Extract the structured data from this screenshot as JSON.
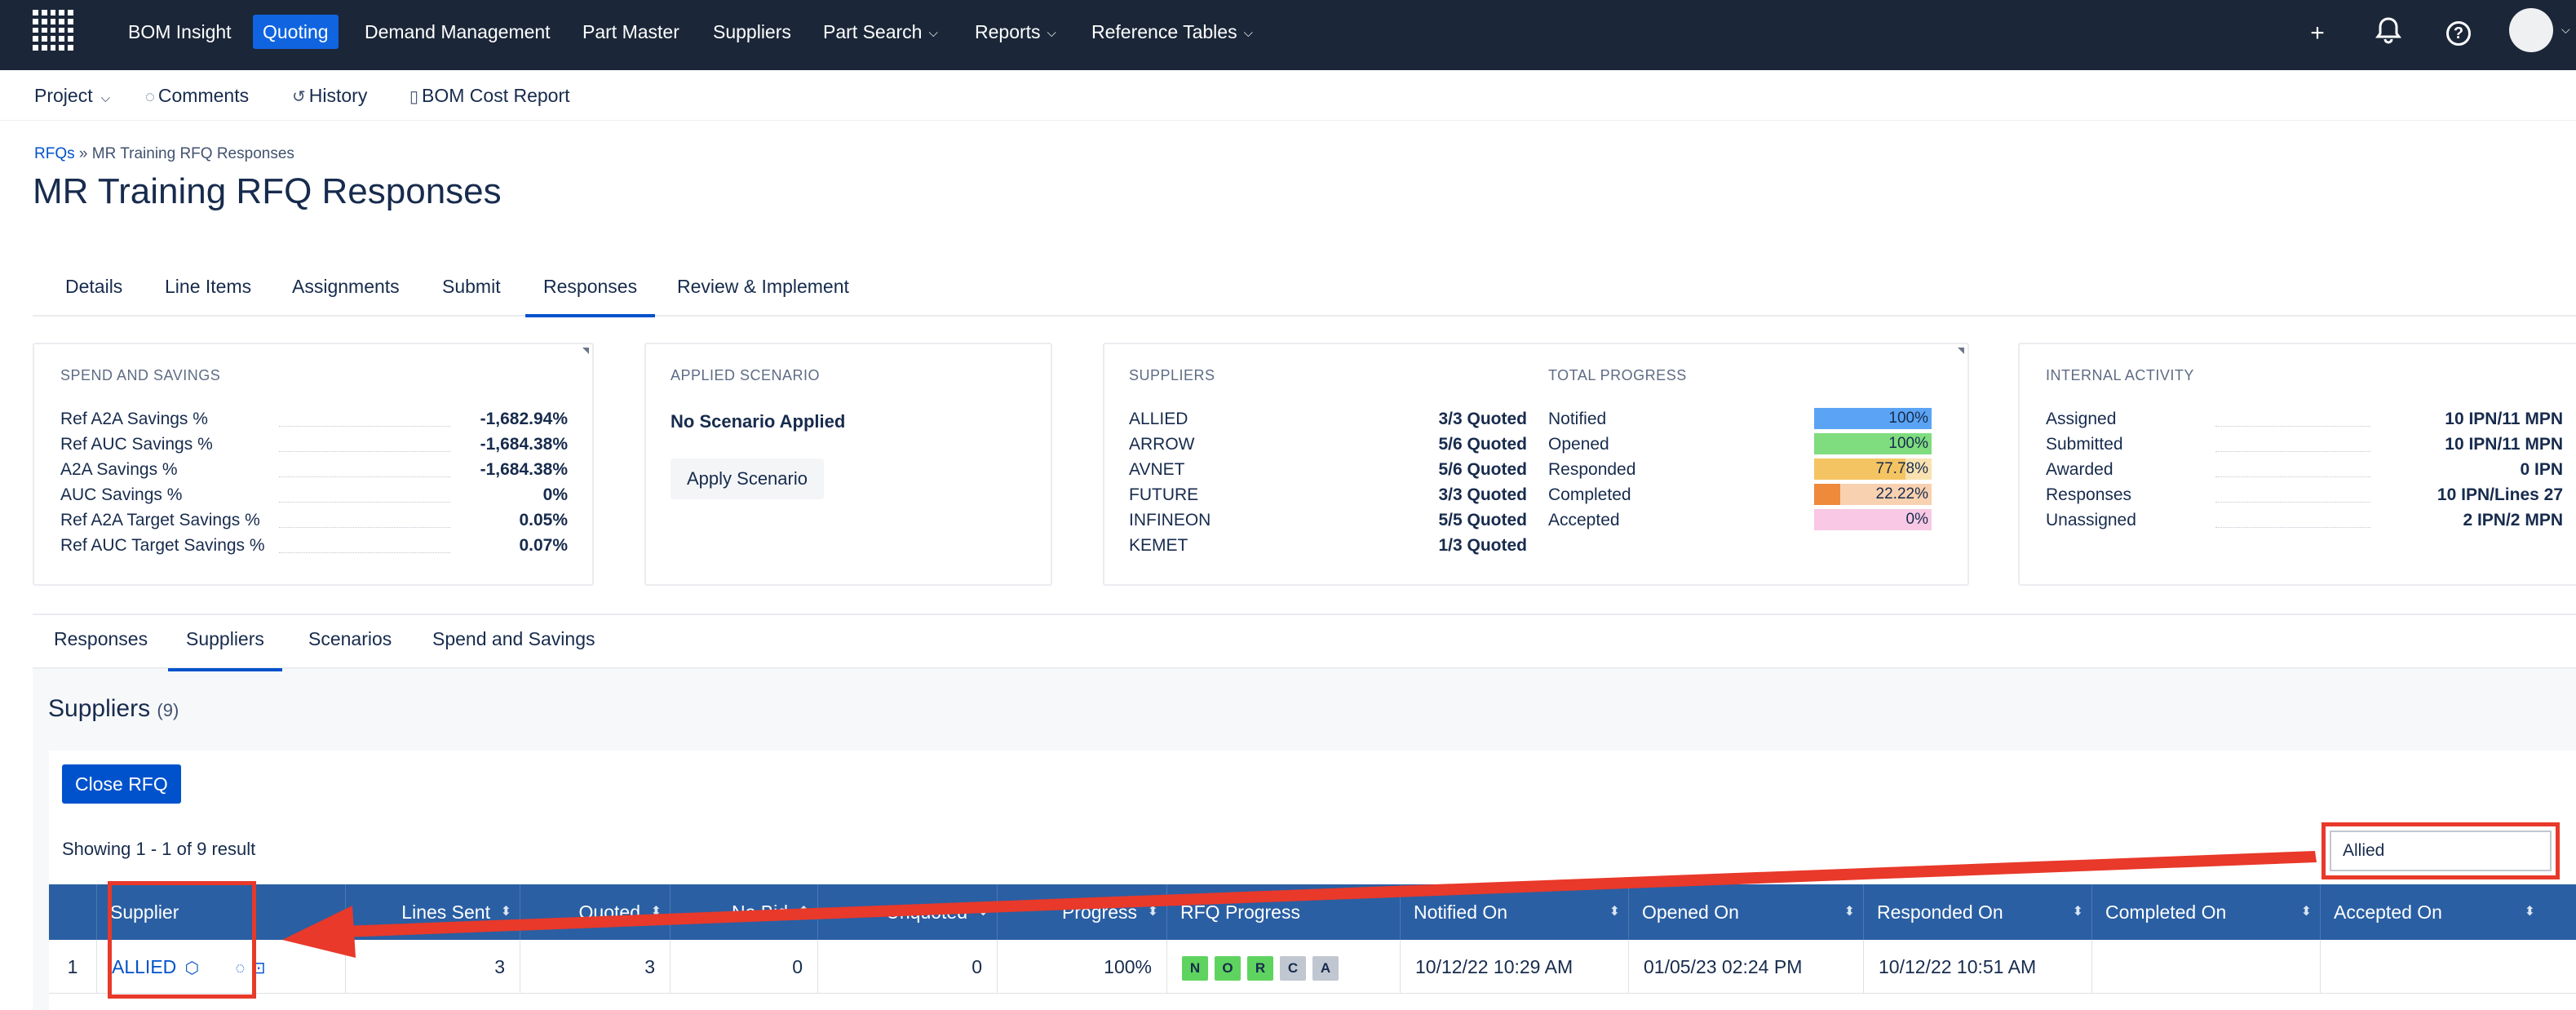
{
  "topnav": {
    "items": [
      {
        "label": "BOM Insight"
      },
      {
        "label": "Quoting"
      },
      {
        "label": "Demand Management"
      },
      {
        "label": "Part Master"
      },
      {
        "label": "Suppliers"
      },
      {
        "label": "Part Search"
      },
      {
        "label": "Reports"
      },
      {
        "label": "Reference Tables"
      }
    ],
    "icons": [
      "plus-icon",
      "bell-icon",
      "help-icon",
      "avatar"
    ]
  },
  "subnav": {
    "project": "Project",
    "comments": "Comments",
    "history": "History",
    "bom_cost_report": "BOM Cost Report"
  },
  "breadcrumb": {
    "root": "RFQs",
    "sep": "»",
    "current": "MR Training RFQ Responses"
  },
  "page_title": "MR Training RFQ Responses",
  "tabs": [
    "Details",
    "Line Items",
    "Assignments",
    "Submit",
    "Responses",
    "Review & Implement"
  ],
  "active_tab": "Responses",
  "spend": {
    "header": "SPEND AND SAVINGS",
    "rows": [
      {
        "k": "Ref A2A Savings %",
        "v": "-1,682.94%"
      },
      {
        "k": "Ref AUC Savings %",
        "v": "-1,684.38%"
      },
      {
        "k": "A2A Savings %",
        "v": "-1,684.38%"
      },
      {
        "k": "AUC Savings %",
        "v": "0%"
      },
      {
        "k": "Ref A2A Target Savings %",
        "v": "0.05%"
      },
      {
        "k": "Ref AUC Target Savings %",
        "v": "0.07%"
      }
    ]
  },
  "scenario": {
    "header": "APPLIED SCENARIO",
    "status": "No Scenario Applied",
    "button": "Apply Scenario"
  },
  "suppliers_card": {
    "header": "SUPPLIERS",
    "rows": [
      {
        "k": "ALLIED",
        "v": "3/3 Quoted"
      },
      {
        "k": "ARROW",
        "v": "5/6 Quoted"
      },
      {
        "k": "AVNET",
        "v": "5/6 Quoted"
      },
      {
        "k": "FUTURE",
        "v": "3/3 Quoted"
      },
      {
        "k": "INFINEON",
        "v": "5/5 Quoted"
      },
      {
        "k": "KEMET",
        "v": "1/3 Quoted"
      }
    ]
  },
  "progress_card": {
    "header": "TOTAL PROGRESS",
    "rows": [
      {
        "k": "Notified",
        "v": "100%",
        "pct": 100,
        "color": "#5ba4f5",
        "bg": "#5ba4f5"
      },
      {
        "k": "Opened",
        "v": "100%",
        "pct": 100,
        "color": "#7fdc7f",
        "bg": "#7fdc7f"
      },
      {
        "k": "Responded",
        "v": "77.78%",
        "pct": 77.78,
        "color": "#f5c462",
        "bg": "#f9e2b0"
      },
      {
        "k": "Completed",
        "v": "22.22%",
        "pct": 22.22,
        "color": "#ee8a3a",
        "bg": "#f8d1b0"
      },
      {
        "k": "Accepted",
        "v": "0%",
        "pct": 0,
        "color": "#f5a0d0",
        "bg": "#f8c8e4"
      }
    ]
  },
  "internal": {
    "header": "INTERNAL ACTIVITY",
    "rows": [
      {
        "k": "Assigned",
        "v": "10 IPN/11 MPN"
      },
      {
        "k": "Submitted",
        "v": "10 IPN/11 MPN"
      },
      {
        "k": "Awarded",
        "v": "0 IPN"
      },
      {
        "k": "Responses",
        "v": "10 IPN/Lines 27"
      },
      {
        "k": "Unassigned",
        "v": "2 IPN/2 MPN"
      }
    ]
  },
  "subtabs": [
    "Responses",
    "Suppliers",
    "Scenarios",
    "Spend and Savings"
  ],
  "active_subtab": "Suppliers",
  "section": {
    "title": "Suppliers",
    "count": "(9)"
  },
  "close_button": "Close RFQ",
  "showing": "Showing 1 - 1 of 9 result",
  "search_value": "Allied",
  "table": {
    "headers": [
      "Supplier",
      "Lines Sent",
      "Quoted",
      "No Bid",
      "Unquoted",
      "Progress",
      "RFQ Progress",
      "Notified On",
      "Opened On",
      "Responded On",
      "Completed On",
      "Accepted On"
    ],
    "row": {
      "index": "1",
      "supplier": "ALLIED",
      "lines_sent": "3",
      "quoted": "3",
      "no_bid": "0",
      "unquoted": "0",
      "progress": "100%",
      "badges": [
        {
          "t": "N",
          "color": "#5fd35f"
        },
        {
          "t": "O",
          "color": "#5fd35f"
        },
        {
          "t": "R",
          "color": "#5fd35f"
        },
        {
          "t": "C",
          "color": "#c1c7d0"
        },
        {
          "t": "A",
          "color": "#c1c7d0"
        }
      ],
      "notified_on": "10/12/22 10:29 AM",
      "opened_on": "01/05/23 02:24 PM",
      "responded_on": "10/12/22 10:51 AM",
      "completed_on": "",
      "accepted_on": ""
    }
  },
  "annotation_color": "#e8392a"
}
